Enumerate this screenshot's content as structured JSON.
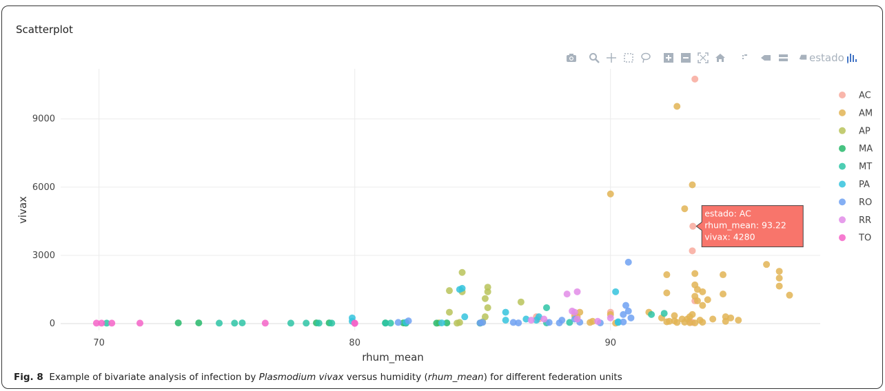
{
  "panel": {
    "title": "Scatterplot"
  },
  "toolbar": {
    "icons": [
      "camera-icon",
      "zoom-icon",
      "pan-icon",
      "box-select-icon",
      "lasso-icon",
      "zoom-in-icon",
      "zoom-out-icon",
      "autoscale-icon",
      "reset-axes-icon",
      "spike-lines-icon",
      "hover-closest-icon",
      "hover-compare-icon",
      "estado-icon",
      "plotly-logo-icon"
    ],
    "estado_text": "estado"
  },
  "chart_data": {
    "type": "scatter",
    "title": "",
    "xlabel": "rhum_mean",
    "ylabel": "vivax",
    "xlim": [
      68.5,
      98.2
    ],
    "ylim": [
      -300,
      11200
    ],
    "xticks": [
      70,
      80,
      90
    ],
    "yticks": [
      0,
      3000,
      6000,
      9000
    ],
    "grid": true,
    "legend_position": "right",
    "series": [
      {
        "name": "AC",
        "color": "#f8a99c",
        "x": [
          93.3,
          93.22,
          93.2,
          93.3,
          87.1,
          87.2,
          90.0,
          93.1,
          93.2
        ],
        "y": [
          10750,
          4280,
          3200,
          1000,
          300,
          200,
          500,
          100,
          50
        ]
      },
      {
        "name": "AM",
        "color": "#e2b455",
        "x": [
          92.6,
          93.2,
          90.0,
          92.9,
          93.3,
          92.2,
          93.3,
          93.4,
          93.6,
          93.3,
          94.4,
          96.1,
          96.6,
          96.6,
          96.6,
          97.0,
          93.4,
          93.6,
          93.8,
          92.2,
          94.4,
          94.5,
          94.7,
          88.6,
          88.7,
          88.8,
          89.3,
          90.0,
          91.5,
          92.0,
          92.5,
          93.0,
          93.2,
          93.5,
          94.0,
          94.5,
          95.0,
          92.3,
          92.6,
          92.8,
          93.1,
          92.2,
          92.5,
          92.9,
          93.1,
          93.3,
          93.6,
          89.2,
          90.2
        ],
        "y": [
          9550,
          6100,
          5700,
          5050,
          2200,
          2150,
          1700,
          1500,
          1400,
          1200,
          2150,
          2600,
          2300,
          2000,
          1650,
          1250,
          1000,
          800,
          1050,
          1350,
          1300,
          300,
          250,
          350,
          300,
          500,
          100,
          400,
          500,
          250,
          350,
          200,
          400,
          150,
          200,
          100,
          150,
          100,
          50,
          200,
          300,
          80,
          120,
          60,
          40,
          30,
          60,
          50,
          20
        ]
      },
      {
        "name": "AP",
        "color": "#b8c35a",
        "x": [
          84.2,
          83.7,
          84.2,
          85.2,
          85.2,
          85.1,
          85.2,
          85.1,
          83.7,
          86.5,
          85.0,
          84.1,
          83.3,
          84.0
        ],
        "y": [
          2250,
          1450,
          1400,
          1600,
          1400,
          1100,
          700,
          300,
          500,
          950,
          80,
          50,
          30,
          20
        ]
      },
      {
        "name": "MA",
        "color": "#27b96b",
        "x": [
          73.1,
          73.9,
          78.5,
          79.0,
          81.9,
          82.0,
          83.6,
          83.2,
          81.2,
          84.9
        ],
        "y": [
          30,
          30,
          30,
          30,
          30,
          20,
          30,
          20,
          30,
          20
        ]
      },
      {
        "name": "MT",
        "color": "#2ec4a6",
        "x": [
          70.3,
          74.7,
          75.3,
          75.6,
          77.5,
          78.1,
          78.6,
          79.1,
          81.2,
          81.4,
          87.5,
          88.4,
          87.5,
          91.6,
          92.1
        ],
        "y": [
          20,
          20,
          20,
          30,
          20,
          20,
          20,
          20,
          20,
          20,
          700,
          50,
          30,
          400,
          450
        ]
      },
      {
        "name": "PA",
        "color": "#35c3dd",
        "x": [
          84.2,
          84.1,
          85.9,
          85.9,
          84.3,
          87.2,
          87.1,
          86.7,
          90.2,
          90.3,
          90.3,
          79.9,
          79.9,
          82.0,
          83.4
        ],
        "y": [
          1550,
          1500,
          500,
          150,
          300,
          300,
          150,
          200,
          1400,
          50,
          80,
          250,
          100,
          50,
          30
        ]
      },
      {
        "name": "RO",
        "color": "#6ea1f2",
        "x": [
          90.7,
          90.6,
          90.7,
          90.5,
          90.8,
          88.6,
          88.1,
          82.1,
          81.7,
          85.0,
          84.9,
          86.2,
          86.4,
          87.6,
          88.0,
          88.8,
          89.6,
          90.5
        ],
        "y": [
          2700,
          800,
          550,
          400,
          250,
          200,
          150,
          120,
          50,
          50,
          30,
          50,
          30,
          50,
          30,
          60,
          30,
          70
        ]
      },
      {
        "name": "RR",
        "color": "#e28ce8",
        "x": [
          88.3,
          88.7,
          88.6,
          88.5,
          87.4,
          86.9,
          88.7,
          90.0,
          89.5
        ],
        "y": [
          1300,
          1400,
          500,
          550,
          200,
          150,
          200,
          250,
          100
        ]
      },
      {
        "name": "TO",
        "color": "#f564c8",
        "x": [
          69.9,
          70.1,
          70.5,
          71.6,
          76.5,
          80.0,
          80.0
        ],
        "y": [
          20,
          20,
          20,
          20,
          20,
          20,
          10
        ]
      }
    ],
    "hover_label": {
      "lines": [
        "estado: AC",
        "rhum_mean: 93.22",
        "vivax: 4280"
      ],
      "color": "#f8756b"
    }
  },
  "caption": {
    "label": "Fig. 8",
    "segments": [
      {
        "text": "Example of bivariate analysis of infection by ",
        "italic": false
      },
      {
        "text": "Plasmodium vivax",
        "italic": true
      },
      {
        "text": " versus humidity (",
        "italic": false
      },
      {
        "text": "rhum_mean",
        "italic": true
      },
      {
        "text": ") for different federation units",
        "italic": false
      }
    ]
  }
}
